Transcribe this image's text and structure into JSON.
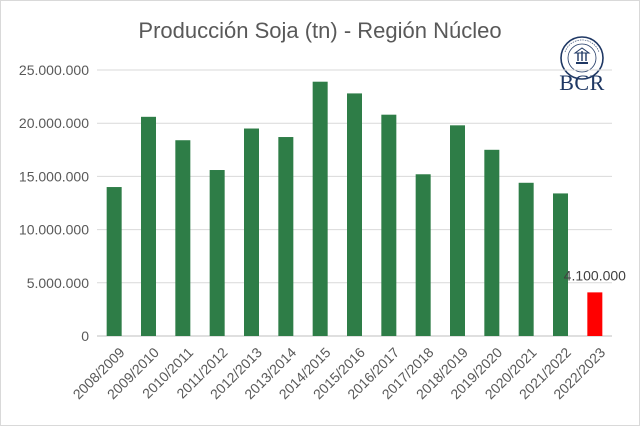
{
  "chart_data": {
    "type": "bar",
    "title": "Producción Soja (tn) - Región Núcleo",
    "categories": [
      "2008/2009",
      "2009/2010",
      "2010/2011",
      "2011/2012",
      "2012/2013",
      "2013/2014",
      "2014/2015",
      "2015/2016",
      "2016/2017",
      "2017/2018",
      "2018/2019",
      "2019/2020",
      "2020/2021",
      "2021/2022",
      "2022/2023"
    ],
    "values": [
      14000000,
      20600000,
      18400000,
      15600000,
      19500000,
      18700000,
      23900000,
      22800000,
      20800000,
      15200000,
      19800000,
      17500000,
      14400000,
      13400000,
      4100000
    ],
    "bar_colors": [
      "#2e7d47",
      "#2e7d47",
      "#2e7d47",
      "#2e7d47",
      "#2e7d47",
      "#2e7d47",
      "#2e7d47",
      "#2e7d47",
      "#2e7d47",
      "#2e7d47",
      "#2e7d47",
      "#2e7d47",
      "#2e7d47",
      "#2e7d47",
      "#ff0000"
    ],
    "ylim": [
      0,
      25000000
    ],
    "yticks": [
      "0",
      "5.000.000",
      "10.000.000",
      "15.000.000",
      "20.000.000",
      "25.000.000"
    ],
    "gridlines": true,
    "data_label": {
      "index": 14,
      "text": "4.100.000"
    }
  },
  "logo": {
    "text": "BCR",
    "seal_text": "BOLSA DE COMERCIO DE ROSARIO"
  },
  "colors": {
    "bar": "#2e7d47",
    "highlight": "#ff0000",
    "grid": "#d9d9d9",
    "text": "#595959"
  }
}
